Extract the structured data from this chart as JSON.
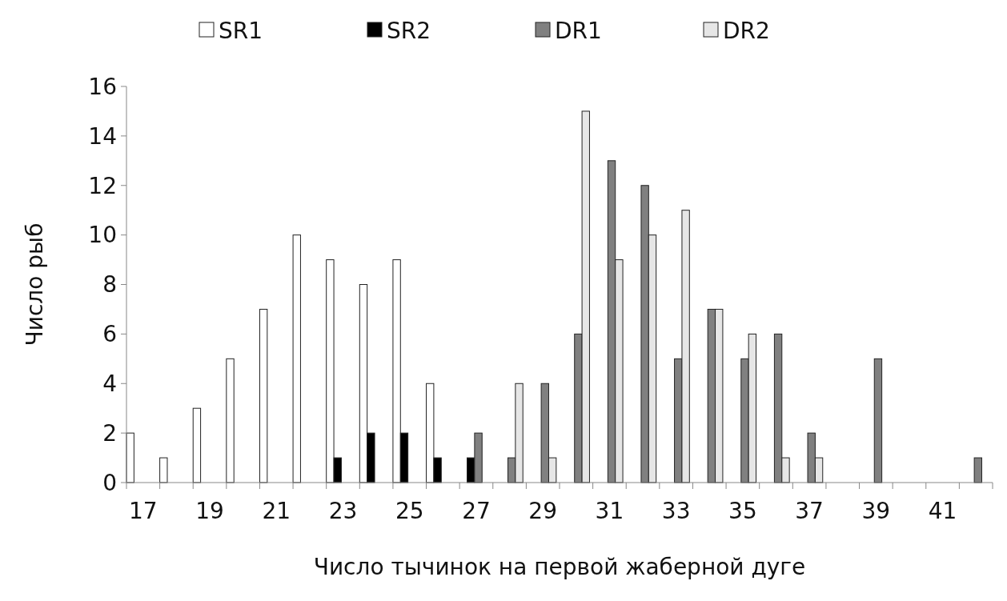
{
  "chart_data": {
    "type": "bar",
    "xlabel": "Число тычинок на первой жаберной дуге",
    "ylabel": "Число рыб",
    "categories": [
      "17",
      null,
      "19",
      null,
      "21",
      null,
      "23",
      null,
      "25",
      null,
      "27",
      null,
      "29",
      null,
      "31",
      null,
      "33",
      null,
      "35",
      null,
      "37",
      null,
      "39",
      null,
      "41",
      null
    ],
    "series": [
      {
        "name": "SR1",
        "color": "#ffffff",
        "values": [
          2,
          1,
          3,
          5,
          7,
          10,
          9,
          8,
          9,
          4,
          0,
          0,
          0,
          0,
          0,
          0,
          0,
          0,
          0,
          0,
          0,
          0,
          0,
          0,
          0,
          0
        ]
      },
      {
        "name": "SR2",
        "color": "#000000",
        "values": [
          0,
          0,
          0,
          0,
          0,
          0,
          1,
          2,
          2,
          1,
          1,
          0,
          0,
          0,
          0,
          0,
          0,
          0,
          0,
          0,
          0,
          0,
          0,
          0,
          0,
          0
        ]
      },
      {
        "name": "DR1",
        "color": "#808080",
        "values": [
          0,
          0,
          0,
          0,
          0,
          0,
          0,
          0,
          0,
          0,
          2,
          1,
          4,
          6,
          13,
          12,
          5,
          7,
          5,
          6,
          2,
          0,
          5,
          0,
          0,
          1
        ]
      },
      {
        "name": "DR2",
        "color": "#e6e6e6",
        "values": [
          0,
          0,
          0,
          0,
          0,
          0,
          0,
          0,
          0,
          0,
          0,
          4,
          1,
          15,
          9,
          10,
          11,
          7,
          6,
          1,
          1,
          0,
          0,
          0,
          0,
          0
        ]
      }
    ],
    "ylim": [
      0,
      16
    ],
    "yticks": [
      0,
      2,
      4,
      6,
      8,
      10,
      12,
      14,
      16
    ],
    "legend": "top",
    "grid": false
  }
}
